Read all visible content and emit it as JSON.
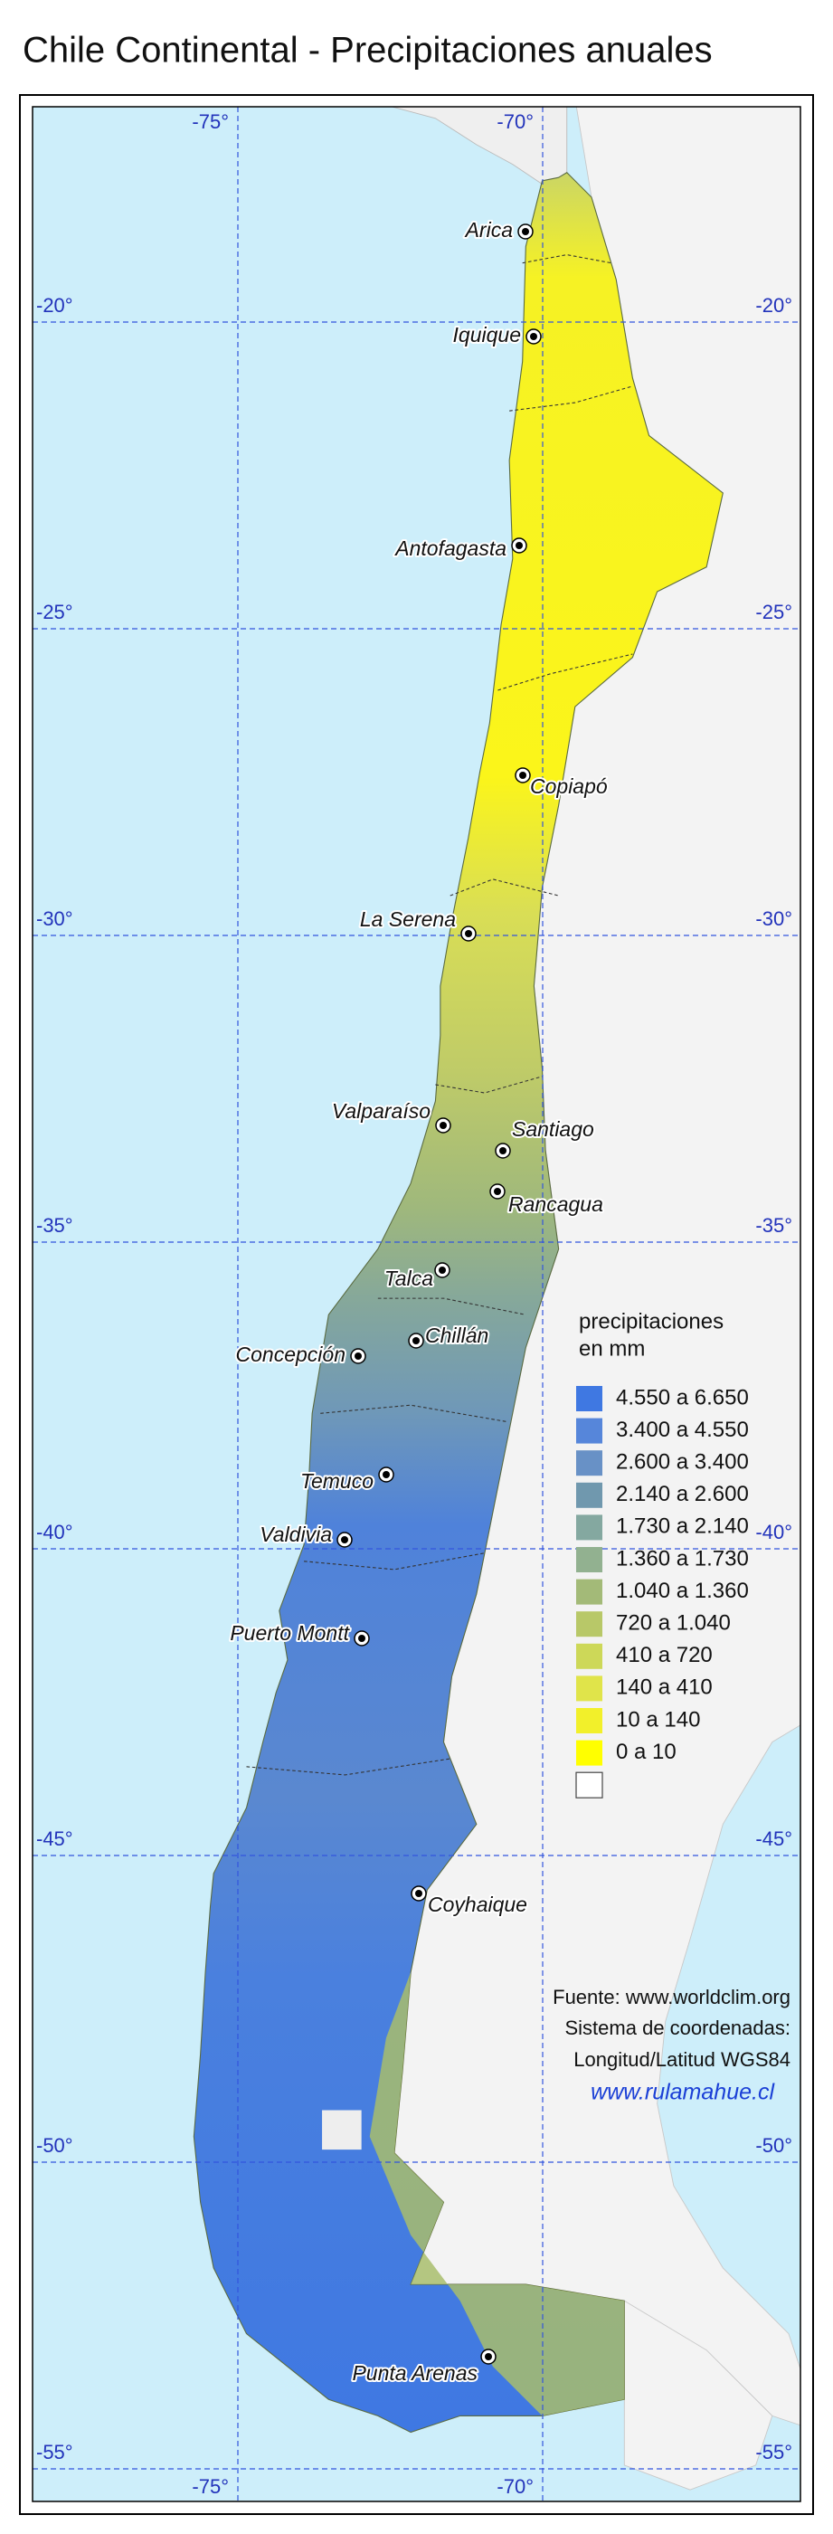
{
  "title": "Chile Continental - Precipitaciones anuales",
  "grid": {
    "longitudes": [
      {
        "value": -75,
        "label": "-75°"
      },
      {
        "value": -70,
        "label": "-70°"
      }
    ],
    "latitudes": [
      {
        "value": -20,
        "label": "-20°"
      },
      {
        "value": -25,
        "label": "-25°"
      },
      {
        "value": -30,
        "label": "-30°"
      },
      {
        "value": -35,
        "label": "-35°"
      },
      {
        "value": -40,
        "label": "-40°"
      },
      {
        "value": -45,
        "label": "-45°"
      },
      {
        "value": -50,
        "label": "-50°"
      },
      {
        "value": -55,
        "label": "-55°"
      }
    ]
  },
  "cities": [
    "Arica",
    "Iquique",
    "Antofagasta",
    "Copiapó",
    "La Serena",
    "Valparaíso",
    "Santiago",
    "Rancagua",
    "Talca",
    "Chillán",
    "Concepción",
    "Temuco",
    "Valdivia",
    "Puerto Montt",
    "Coyhaique",
    "Punta Arenas"
  ],
  "legend": {
    "title": [
      "precipitaciones",
      "en mm"
    ],
    "entries": [
      {
        "label": "4.550 a 6.650",
        "color": "#3f78e2"
      },
      {
        "label": "3.400 a 4.550",
        "color": "#5686da"
      },
      {
        "label": "2.600 a 3.400",
        "color": "#6891c6"
      },
      {
        "label": "2.140 a 2.600",
        "color": "#7098ae"
      },
      {
        "label": "1.730 a 2.140",
        "color": "#84a8a0"
      },
      {
        "label": "1.360 a 1.730",
        "color": "#92b190"
      },
      {
        "label": "1.040 a 1.360",
        "color": "#a3ba78"
      },
      {
        "label": "720 a 1.040",
        "color": "#b8c868"
      },
      {
        "label": "410 a 720",
        "color": "#cdd858"
      },
      {
        "label": "140 a 410",
        "color": "#e0e44a"
      },
      {
        "label": "10 a 140",
        "color": "#f2f02a"
      },
      {
        "label": "0 a 10",
        "color": "#ffff00"
      },
      {
        "color": "#ffffff"
      }
    ]
  },
  "credits": {
    "source": "Fuente: www.worldclim.org",
    "system_label": "Sistema de coordenadas:",
    "system": "Longitud/Latitud WGS84",
    "website": "www.rulamahue.cl"
  }
}
